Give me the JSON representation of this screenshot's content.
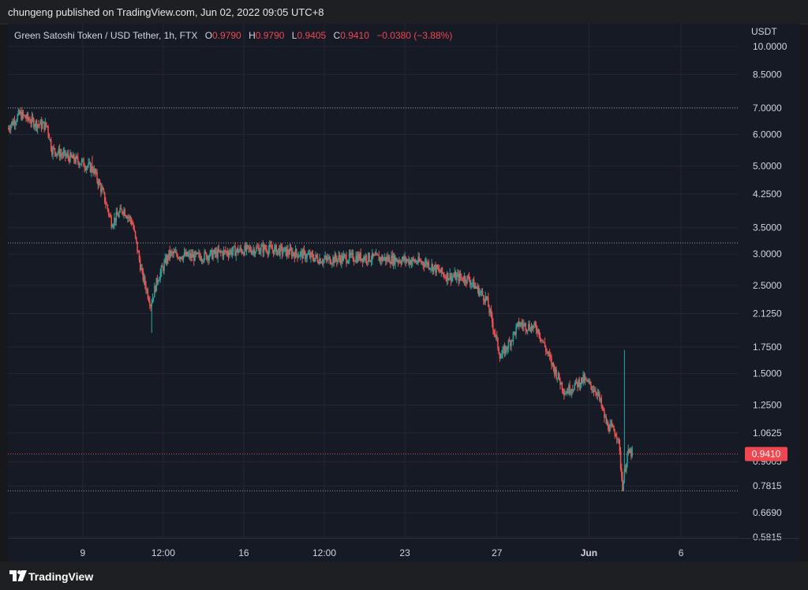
{
  "header": {
    "published_text": "chungeng published on TradingView.com, Jun 02, 2022 09:05 UTC+8"
  },
  "legend": {
    "symbol": "Green Satoshi Token / USD Tether, 1h, FTX",
    "o_label": "O",
    "o_value": "0.9790",
    "h_label": "H",
    "h_value": "0.9790",
    "l_label": "L",
    "l_value": "0.9405",
    "c_label": "C",
    "c_value": "0.9410",
    "change": "−0.0380 (−3.88%)"
  },
  "footer": {
    "brand": "TradingView",
    "logo_icon": "tradingview-logo-icon"
  },
  "colors": {
    "up": "#26a69a",
    "down": "#ef5350",
    "background": "#161a25",
    "grid": "#242733",
    "last_price_tag": "#f0464f"
  },
  "chart_data": {
    "type": "candlestick",
    "title": "Green Satoshi Token / USD Tether, 1h, FTX",
    "currency_label": "USDT",
    "y_scale": "log",
    "ylim": [
      0.55,
      11.0
    ],
    "y_ticks": [
      "10.0000",
      "8.5000",
      "7.0000",
      "6.0000",
      "5.0000",
      "4.2500",
      "3.5000",
      "3.0000",
      "2.5000",
      "2.1250",
      "1.7500",
      "1.5000",
      "1.2500",
      "1.0625",
      "0.9005",
      "0.7815",
      "0.6690",
      "0.5815"
    ],
    "x_ticks": [
      "9",
      "12:00",
      "16",
      "12:00",
      "23",
      "27",
      "Jun",
      "6"
    ],
    "x_tick_bold": [
      false,
      false,
      false,
      false,
      false,
      false,
      true,
      false
    ],
    "x_tick_days": [
      9,
      12.5,
      16,
      19.5,
      23,
      27,
      31,
      35
    ],
    "x_range_days": [
      5.75,
      37.5
    ],
    "last_price": "0.9410",
    "horizontal_levels": [
      7.0,
      3.2,
      0.76
    ],
    "price_path": [
      {
        "day": 5.75,
        "price": 6.2
      },
      {
        "day": 6.3,
        "price": 6.75
      },
      {
        "day": 7.0,
        "price": 6.4
      },
      {
        "day": 7.5,
        "price": 6.3
      },
      {
        "day": 7.7,
        "price": 5.5
      },
      {
        "day": 8.3,
        "price": 5.3
      },
      {
        "day": 9.0,
        "price": 5.1
      },
      {
        "day": 9.5,
        "price": 4.9
      },
      {
        "day": 9.9,
        "price": 4.3
      },
      {
        "day": 10.3,
        "price": 3.6
      },
      {
        "day": 10.8,
        "price": 3.9
      },
      {
        "day": 11.2,
        "price": 3.6
      },
      {
        "day": 11.6,
        "price": 2.7
      },
      {
        "day": 12.0,
        "price": 2.25
      },
      {
        "day": 12.3,
        "price": 2.6
      },
      {
        "day": 12.8,
        "price": 3.0
      },
      {
        "day": 14.0,
        "price": 2.95
      },
      {
        "day": 15.5,
        "price": 3.05
      },
      {
        "day": 17.0,
        "price": 3.1
      },
      {
        "day": 18.5,
        "price": 3.0
      },
      {
        "day": 19.5,
        "price": 2.9
      },
      {
        "day": 21.0,
        "price": 2.95
      },
      {
        "day": 23.0,
        "price": 2.9
      },
      {
        "day": 24.0,
        "price": 2.85
      },
      {
        "day": 24.8,
        "price": 2.65
      },
      {
        "day": 25.8,
        "price": 2.6
      },
      {
        "day": 26.6,
        "price": 2.3
      },
      {
        "day": 27.2,
        "price": 1.65
      },
      {
        "day": 27.6,
        "price": 1.8
      },
      {
        "day": 28.0,
        "price": 2.0
      },
      {
        "day": 28.8,
        "price": 1.95
      },
      {
        "day": 29.4,
        "price": 1.6
      },
      {
        "day": 30.0,
        "price": 1.35
      },
      {
        "day": 30.8,
        "price": 1.45
      },
      {
        "day": 31.4,
        "price": 1.35
      },
      {
        "day": 31.8,
        "price": 1.12
      },
      {
        "day": 32.3,
        "price": 1.05
      },
      {
        "day": 32.5,
        "price": 0.78
      },
      {
        "day": 32.7,
        "price": 0.94
      },
      {
        "day": 32.9,
        "price": 0.95
      }
    ],
    "spike": {
      "day": 32.55,
      "high": 1.72,
      "low": 0.76
    }
  }
}
